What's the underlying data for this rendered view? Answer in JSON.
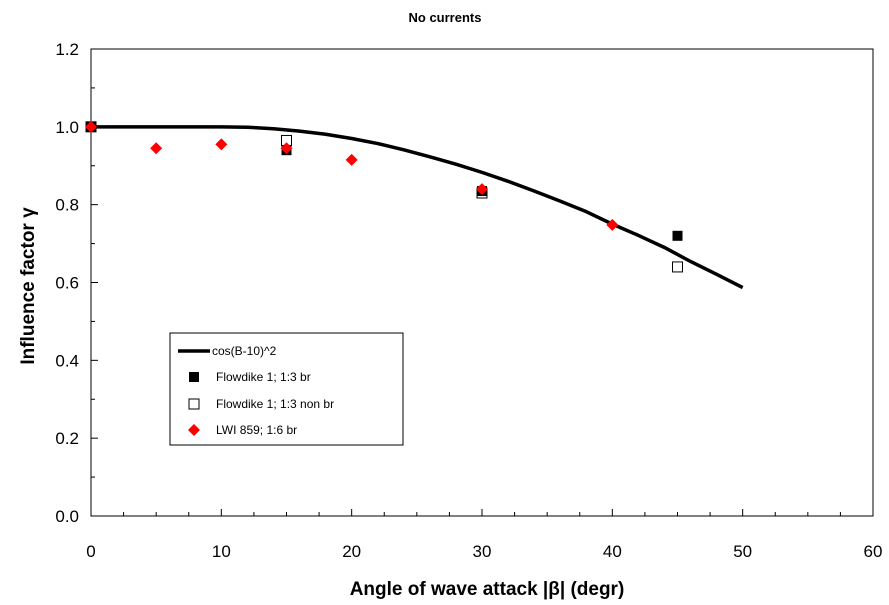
{
  "chart_data": {
    "type": "scatter",
    "title": "No currents",
    "xlabel": "Angle of wave attack |β| (degr)",
    "ylabel": "Influence factor γ",
    "xlim": [
      0,
      60
    ],
    "ylim": [
      0.0,
      1.2
    ],
    "xticks": [
      0,
      10,
      20,
      30,
      40,
      50,
      60
    ],
    "yticks": [
      0.0,
      0.2,
      0.4,
      0.6,
      0.8,
      1.0,
      1.2
    ],
    "xtick_labels": [
      "0",
      "10",
      "20",
      "30",
      "40",
      "50",
      "60"
    ],
    "ytick_labels": [
      "0.0",
      "0.2",
      "0.4",
      "0.6",
      "0.8",
      "1.0",
      "1.2"
    ],
    "grid": false,
    "legend_position": "lower-left",
    "series": [
      {
        "name": "cos(B-10)^2",
        "kind": "line",
        "color": "#000000",
        "x": [
          0,
          10,
          12,
          14,
          16,
          18,
          20,
          22,
          24,
          26,
          28,
          30,
          32,
          34,
          36,
          38,
          40,
          42,
          44,
          46,
          48,
          50
        ],
        "y": [
          1.0,
          1.0,
          0.999,
          0.995,
          0.989,
          0.981,
          0.97,
          0.957,
          0.941,
          0.923,
          0.904,
          0.883,
          0.86,
          0.835,
          0.809,
          0.782,
          0.75,
          0.721,
          0.69,
          0.654,
          0.621,
          0.587
        ]
      },
      {
        "name": "Flowdike 1; 1:3 br",
        "kind": "marker",
        "marker": "filled-square",
        "color": "#000000",
        "x": [
          0,
          15,
          30,
          45
        ],
        "y": [
          1.0,
          0.94,
          0.835,
          0.72
        ]
      },
      {
        "name": "Flowdike 1; 1:3 non br",
        "kind": "marker",
        "marker": "open-square",
        "color": "#000000",
        "x": [
          0,
          15,
          30,
          45
        ],
        "y": [
          1.0,
          0.965,
          0.83,
          0.64
        ]
      },
      {
        "name": "LWI 859; 1:6 br",
        "kind": "marker",
        "marker": "diamond",
        "color": "#ff0000",
        "x": [
          0,
          5,
          10,
          15,
          20,
          30,
          40
        ],
        "y": [
          1.0,
          0.945,
          0.955,
          0.945,
          0.915,
          0.84,
          0.748
        ]
      }
    ]
  }
}
